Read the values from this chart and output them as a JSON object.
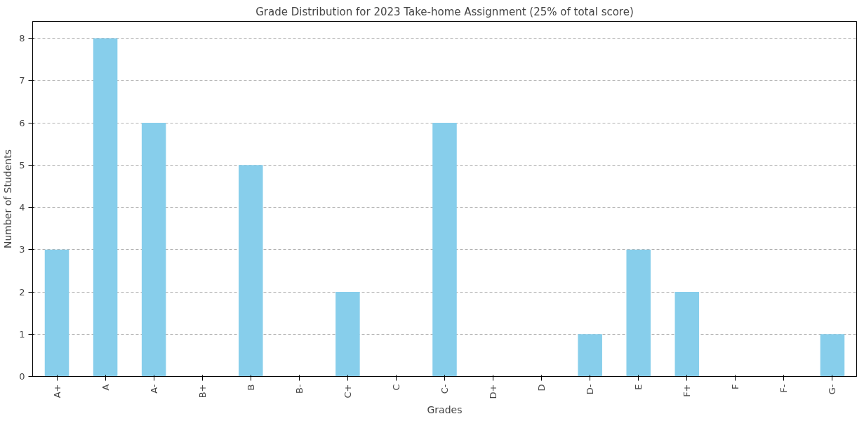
{
  "chart_data": {
    "type": "bar",
    "title": "Grade Distribution for 2023 Take-home Assignment (25% of total score)",
    "xlabel": "Grades",
    "ylabel": "Number of Students",
    "categories": [
      "A+",
      "A",
      "A-",
      "B+",
      "B",
      "B-",
      "C+",
      "C",
      "C-",
      "D+",
      "D",
      "D-",
      "E",
      "F+",
      "F",
      "F-",
      "G-"
    ],
    "values": [
      3,
      8,
      6,
      0,
      5,
      0,
      2,
      0,
      6,
      0,
      0,
      1,
      3,
      2,
      0,
      0,
      1
    ],
    "color": "#87ceeb",
    "ylim": [
      0,
      8.4
    ],
    "yticks": [
      0,
      1,
      2,
      3,
      4,
      5,
      6,
      7,
      8
    ],
    "grid": "y"
  }
}
